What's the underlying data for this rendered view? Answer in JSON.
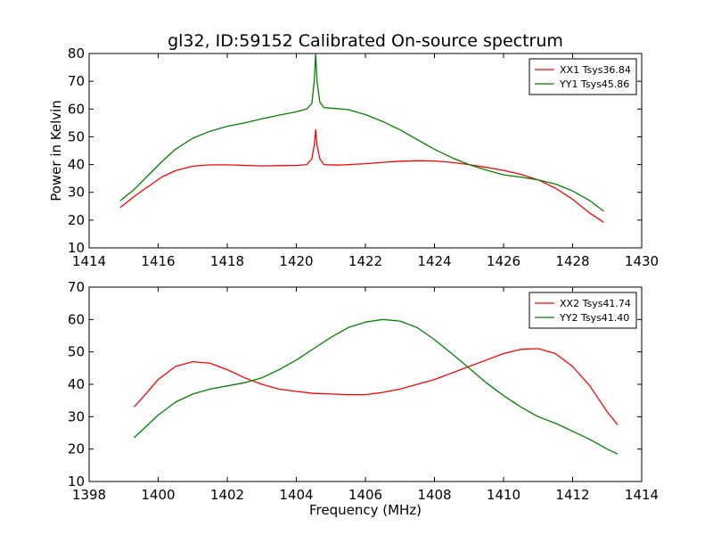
{
  "chart_data": [
    {
      "type": "line",
      "title": "gl32, ID:59152 Calibrated On-source spectrum",
      "xlabel": "",
      "ylabel": "Power in Kelvin",
      "xlim": [
        1414,
        1430
      ],
      "ylim": [
        10,
        80
      ],
      "xticks": [
        "1414",
        "1416",
        "1418",
        "1420",
        "1422",
        "1424",
        "1426",
        "1428",
        "1430"
      ],
      "yticks": [
        "10",
        "20",
        "30",
        "40",
        "50",
        "60",
        "70",
        "80"
      ],
      "legend_position": "top-right",
      "series": [
        {
          "name": "XX1 Tsys36.84",
          "color": "#ff0000",
          "points": [
            [
              1414.9,
              24.5
            ],
            [
              1415.3,
              28.5
            ],
            [
              1415.7,
              32.0
            ],
            [
              1416.1,
              35.5
            ],
            [
              1416.5,
              37.8
            ],
            [
              1417.0,
              39.4
            ],
            [
              1417.5,
              39.9
            ],
            [
              1418.0,
              39.9
            ],
            [
              1418.5,
              39.7
            ],
            [
              1419.0,
              39.5
            ],
            [
              1419.5,
              39.6
            ],
            [
              1420.0,
              39.7
            ],
            [
              1420.3,
              40.0
            ],
            [
              1420.45,
              42.0
            ],
            [
              1420.52,
              47.0
            ],
            [
              1420.56,
              52.5
            ],
            [
              1420.6,
              47.0
            ],
            [
              1420.68,
              42.0
            ],
            [
              1420.8,
              40.0
            ],
            [
              1421.2,
              39.8
            ],
            [
              1421.5,
              40.0
            ],
            [
              1422.0,
              40.3
            ],
            [
              1422.5,
              40.8
            ],
            [
              1423.0,
              41.2
            ],
            [
              1423.5,
              41.4
            ],
            [
              1424.0,
              41.3
            ],
            [
              1424.5,
              40.8
            ],
            [
              1425.0,
              40.0
            ],
            [
              1425.5,
              39.0
            ],
            [
              1426.0,
              37.9
            ],
            [
              1426.5,
              36.5
            ],
            [
              1427.0,
              34.5
            ],
            [
              1427.5,
              31.5
            ],
            [
              1428.0,
              27.5
            ],
            [
              1428.5,
              22.5
            ],
            [
              1428.9,
              19.2
            ]
          ]
        },
        {
          "name": "YY1 Tsys45.86",
          "color": "#008000",
          "points": [
            [
              1414.9,
              27.0
            ],
            [
              1415.3,
              31.0
            ],
            [
              1415.7,
              36.0
            ],
            [
              1416.1,
              41.0
            ],
            [
              1416.5,
              45.5
            ],
            [
              1417.0,
              49.5
            ],
            [
              1417.5,
              52.0
            ],
            [
              1418.0,
              53.8
            ],
            [
              1418.5,
              55.0
            ],
            [
              1419.0,
              56.5
            ],
            [
              1419.5,
              57.8
            ],
            [
              1420.0,
              59.0
            ],
            [
              1420.3,
              60.0
            ],
            [
              1420.45,
              62.0
            ],
            [
              1420.52,
              70.0
            ],
            [
              1420.56,
              80.0
            ],
            [
              1420.6,
              70.0
            ],
            [
              1420.68,
              62.5
            ],
            [
              1420.8,
              60.5
            ],
            [
              1421.5,
              59.8
            ],
            [
              1422.0,
              58.0
            ],
            [
              1422.5,
              55.5
            ],
            [
              1423.0,
              52.5
            ],
            [
              1423.5,
              49.0
            ],
            [
              1424.0,
              45.5
            ],
            [
              1424.5,
              42.5
            ],
            [
              1425.0,
              40.0
            ],
            [
              1425.5,
              38.0
            ],
            [
              1426.0,
              36.3
            ],
            [
              1426.5,
              35.5
            ],
            [
              1427.0,
              34.5
            ],
            [
              1427.5,
              33.0
            ],
            [
              1428.0,
              30.5
            ],
            [
              1428.5,
              27.0
            ],
            [
              1428.9,
              23.2
            ]
          ]
        }
      ]
    },
    {
      "type": "line",
      "title": "",
      "xlabel": "Frequency (MHz)",
      "ylabel": "",
      "xlim": [
        1398,
        1414
      ],
      "ylim": [
        10,
        70
      ],
      "xticks": [
        "1398",
        "1400",
        "1402",
        "1404",
        "1406",
        "1408",
        "1410",
        "1412",
        "1414"
      ],
      "yticks": [
        "10",
        "20",
        "30",
        "40",
        "50",
        "60",
        "70"
      ],
      "legend_position": "top-right",
      "series": [
        {
          "name": "XX2 Tsys41.74",
          "color": "#ff0000",
          "points": [
            [
              1399.3,
              33.0
            ],
            [
              1399.6,
              36.5
            ],
            [
              1400.0,
              41.5
            ],
            [
              1400.5,
              45.5
            ],
            [
              1401.0,
              47.0
            ],
            [
              1401.5,
              46.5
            ],
            [
              1402.0,
              44.5
            ],
            [
              1402.5,
              42.0
            ],
            [
              1403.0,
              40.0
            ],
            [
              1403.5,
              38.5
            ],
            [
              1404.0,
              37.8
            ],
            [
              1404.5,
              37.2
            ],
            [
              1405.0,
              37.0
            ],
            [
              1405.5,
              36.8
            ],
            [
              1406.0,
              36.8
            ],
            [
              1406.5,
              37.5
            ],
            [
              1407.0,
              38.5
            ],
            [
              1407.5,
              40.0
            ],
            [
              1408.0,
              41.5
            ],
            [
              1408.5,
              43.5
            ],
            [
              1409.0,
              45.5
            ],
            [
              1409.5,
              47.5
            ],
            [
              1410.0,
              49.5
            ],
            [
              1410.5,
              50.8
            ],
            [
              1411.0,
              51.0
            ],
            [
              1411.5,
              49.5
            ],
            [
              1412.0,
              45.5
            ],
            [
              1412.5,
              39.5
            ],
            [
              1413.0,
              31.5
            ],
            [
              1413.3,
              27.5
            ]
          ]
        },
        {
          "name": "YY2 Tsys41.40",
          "color": "#008000",
          "points": [
            [
              1399.3,
              23.5
            ],
            [
              1399.6,
              26.5
            ],
            [
              1400.0,
              30.5
            ],
            [
              1400.5,
              34.5
            ],
            [
              1401.0,
              37.0
            ],
            [
              1401.5,
              38.5
            ],
            [
              1402.0,
              39.5
            ],
            [
              1402.5,
              40.5
            ],
            [
              1403.0,
              42.0
            ],
            [
              1403.5,
              44.5
            ],
            [
              1404.0,
              47.5
            ],
            [
              1404.5,
              51.0
            ],
            [
              1405.0,
              54.5
            ],
            [
              1405.5,
              57.5
            ],
            [
              1406.0,
              59.2
            ],
            [
              1406.5,
              60.0
            ],
            [
              1407.0,
              59.5
            ],
            [
              1407.5,
              57.5
            ],
            [
              1408.0,
              53.8
            ],
            [
              1408.5,
              49.5
            ],
            [
              1409.0,
              45.0
            ],
            [
              1409.5,
              40.5
            ],
            [
              1410.0,
              36.5
            ],
            [
              1410.5,
              33.0
            ],
            [
              1411.0,
              30.0
            ],
            [
              1411.5,
              28.0
            ],
            [
              1412.0,
              25.5
            ],
            [
              1412.5,
              23.0
            ],
            [
              1413.0,
              20.0
            ],
            [
              1413.3,
              18.5
            ]
          ]
        }
      ]
    }
  ]
}
